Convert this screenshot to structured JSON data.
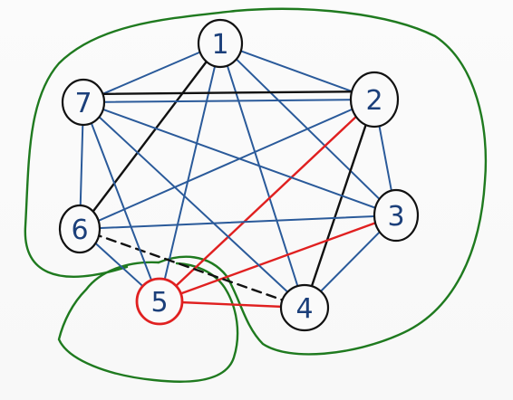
{
  "colors": {
    "background": "#f9f9f9",
    "graph_edge": "#2a5a9a",
    "black_edge": "#111111",
    "red_edge": "#e02020",
    "boundary_curve": "#1f7a1f",
    "node_outline": "#111111",
    "highlight_node": "#e02020",
    "node_text": "#1b3f7a"
  },
  "nodes": [
    {
      "id": "1",
      "label": "1",
      "highlight": false
    },
    {
      "id": "2",
      "label": "2",
      "highlight": false
    },
    {
      "id": "3",
      "label": "3",
      "highlight": false
    },
    {
      "id": "4",
      "label": "4",
      "highlight": false
    },
    {
      "id": "5",
      "label": "5",
      "highlight": true
    },
    {
      "id": "6",
      "label": "6",
      "highlight": false
    },
    {
      "id": "7",
      "label": "7",
      "highlight": false
    }
  ],
  "edges": [
    {
      "from": "1",
      "to": "2",
      "color": "blue"
    },
    {
      "from": "1",
      "to": "3",
      "color": "blue"
    },
    {
      "from": "1",
      "to": "4",
      "color": "blue"
    },
    {
      "from": "1",
      "to": "5",
      "color": "blue"
    },
    {
      "from": "1",
      "to": "6",
      "color": "black"
    },
    {
      "from": "1",
      "to": "7",
      "color": "blue"
    },
    {
      "from": "2",
      "to": "3",
      "color": "blue"
    },
    {
      "from": "2",
      "to": "4",
      "color": "black"
    },
    {
      "from": "2",
      "to": "5",
      "color": "red"
    },
    {
      "from": "2",
      "to": "6",
      "color": "blue"
    },
    {
      "from": "2",
      "to": "7",
      "color": "blue"
    },
    {
      "from": "3",
      "to": "4",
      "color": "blue"
    },
    {
      "from": "3",
      "to": "5",
      "color": "red"
    },
    {
      "from": "3",
      "to": "6",
      "color": "blue"
    },
    {
      "from": "3",
      "to": "7",
      "color": "blue"
    },
    {
      "from": "4",
      "to": "5",
      "color": "red"
    },
    {
      "from": "4",
      "to": "6",
      "color": "black-dashed"
    },
    {
      "from": "4",
      "to": "7",
      "color": "blue"
    },
    {
      "from": "5",
      "to": "6",
      "color": "blue"
    },
    {
      "from": "5",
      "to": "7",
      "color": "blue"
    },
    {
      "from": "6",
      "to": "7",
      "color": "blue"
    },
    {
      "from": "2",
      "to": "7",
      "color": "black"
    }
  ]
}
